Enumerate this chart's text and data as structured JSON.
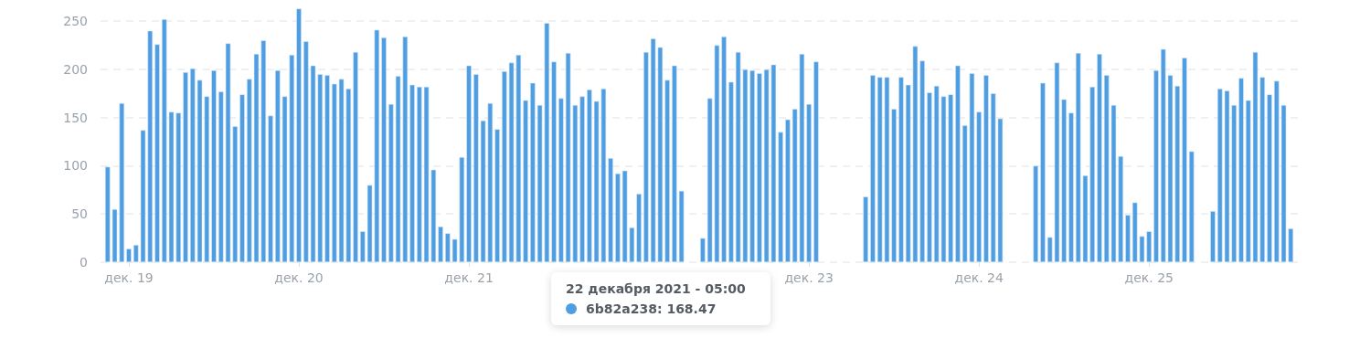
{
  "chart_data": {
    "type": "bar",
    "color": "#4f9ee2",
    "x": [
      "2021-12-18T21:00",
      "2021-12-18T22:00",
      "2021-12-18T23:00",
      "2021-12-19T00:00",
      "2021-12-19T01:00",
      "2021-12-19T02:00",
      "2021-12-19T03:00",
      "2021-12-19T04:00",
      "2021-12-19T05:00",
      "2021-12-19T06:00",
      "2021-12-19T07:00",
      "2021-12-19T08:00",
      "2021-12-19T09:00",
      "2021-12-19T10:00",
      "2021-12-19T11:00",
      "2021-12-19T12:00",
      "2021-12-19T13:00",
      "2021-12-19T14:00",
      "2021-12-19T15:00",
      "2021-12-19T16:00",
      "2021-12-19T17:00",
      "2021-12-19T18:00",
      "2021-12-19T19:00",
      "2021-12-19T20:00",
      "2021-12-19T21:00",
      "2021-12-19T22:00",
      "2021-12-19T23:00",
      "2021-12-20T00:00",
      "2021-12-20T01:00",
      "2021-12-20T02:00",
      "2021-12-20T03:00",
      "2021-12-20T04:00",
      "2021-12-20T05:00",
      "2021-12-20T06:00",
      "2021-12-20T07:00",
      "2021-12-20T08:00",
      "2021-12-20T09:00",
      "2021-12-20T10:00",
      "2021-12-20T11:00",
      "2021-12-20T12:00",
      "2021-12-20T13:00",
      "2021-12-20T14:00",
      "2021-12-20T15:00",
      "2021-12-20T16:00",
      "2021-12-20T17:00",
      "2021-12-20T18:00",
      "2021-12-20T19:00",
      "2021-12-20T20:00",
      "2021-12-20T21:00",
      "2021-12-20T22:00",
      "2021-12-20T23:00",
      "2021-12-21T00:00",
      "2021-12-21T01:00",
      "2021-12-21T02:00",
      "2021-12-21T03:00",
      "2021-12-21T04:00",
      "2021-12-21T05:00",
      "2021-12-21T06:00",
      "2021-12-21T07:00",
      "2021-12-21T08:00",
      "2021-12-21T09:00",
      "2021-12-21T10:00",
      "2021-12-21T11:00",
      "2021-12-21T12:00",
      "2021-12-21T13:00",
      "2021-12-21T14:00",
      "2021-12-21T15:00",
      "2021-12-21T16:00",
      "2021-12-21T17:00",
      "2021-12-21T18:00",
      "2021-12-21T19:00",
      "2021-12-21T20:00",
      "2021-12-21T21:00",
      "2021-12-21T22:00",
      "2021-12-21T23:00",
      "2021-12-22T00:00",
      "2021-12-22T01:00",
      "2021-12-22T02:00",
      "2021-12-22T03:00",
      "2021-12-22T04:00",
      "2021-12-22T05:00",
      "2021-12-22T06:00",
      "2021-12-22T07:00",
      "2021-12-22T08:00",
      "2021-12-22T09:00",
      "2021-12-22T10:00",
      "2021-12-22T11:00",
      "2021-12-22T12:00",
      "2021-12-22T13:00",
      "2021-12-22T14:00",
      "2021-12-22T15:00",
      "2021-12-22T16:00",
      "2021-12-22T17:00",
      "2021-12-22T18:00",
      "2021-12-22T19:00",
      "2021-12-22T20:00",
      "2021-12-22T21:00",
      "2021-12-22T22:00",
      "2021-12-22T23:00",
      "2021-12-23T00:00",
      "2021-12-23T01:00",
      "2021-12-23T02:00",
      "2021-12-23T03:00",
      "2021-12-23T04:00",
      "2021-12-23T05:00",
      "2021-12-23T06:00",
      "2021-12-23T07:00",
      "2021-12-23T08:00",
      "2021-12-23T09:00",
      "2021-12-23T10:00",
      "2021-12-23T11:00",
      "2021-12-23T12:00",
      "2021-12-23T13:00",
      "2021-12-23T14:00",
      "2021-12-23T15:00",
      "2021-12-23T16:00",
      "2021-12-23T17:00",
      "2021-12-23T18:00",
      "2021-12-23T19:00",
      "2021-12-23T20:00",
      "2021-12-23T21:00",
      "2021-12-23T22:00",
      "2021-12-23T23:00",
      "2021-12-24T00:00",
      "2021-12-24T01:00",
      "2021-12-24T02:00",
      "2021-12-24T03:00",
      "2021-12-24T04:00",
      "2021-12-24T05:00",
      "2021-12-24T06:00",
      "2021-12-24T07:00",
      "2021-12-24T08:00",
      "2021-12-24T09:00",
      "2021-12-24T10:00",
      "2021-12-24T11:00",
      "2021-12-24T12:00",
      "2021-12-24T13:00",
      "2021-12-24T14:00",
      "2021-12-24T15:00",
      "2021-12-24T16:00",
      "2021-12-24T17:00",
      "2021-12-24T18:00",
      "2021-12-24T19:00",
      "2021-12-24T20:00",
      "2021-12-24T21:00",
      "2021-12-24T22:00",
      "2021-12-24T23:00",
      "2021-12-25T00:00",
      "2021-12-25T01:00",
      "2021-12-25T02:00",
      "2021-12-25T03:00",
      "2021-12-25T04:00",
      "2021-12-25T05:00",
      "2021-12-25T06:00",
      "2021-12-25T07:00",
      "2021-12-25T08:00",
      "2021-12-25T09:00",
      "2021-12-25T10:00",
      "2021-12-25T11:00",
      "2021-12-25T12:00",
      "2021-12-25T13:00",
      "2021-12-25T14:00",
      "2021-12-25T15:00",
      "2021-12-25T16:00",
      "2021-12-25T17:00",
      "2021-12-25T18:00",
      "2021-12-25T19:00",
      "2021-12-25T20:00"
    ],
    "values": [
      99,
      55,
      165,
      14,
      18,
      137,
      240,
      226,
      252,
      156,
      155,
      197,
      201,
      189,
      172,
      199,
      177,
      227,
      141,
      174,
      190,
      216,
      230,
      152,
      199,
      172,
      215,
      263,
      229,
      204,
      195,
      194,
      185,
      190,
      180,
      218,
      32,
      80,
      241,
      233,
      164,
      193,
      234,
      184,
      182,
      182,
      96,
      37,
      30,
      24,
      109,
      204,
      195,
      147,
      165,
      138,
      198,
      207,
      215,
      168,
      186,
      163,
      248,
      208,
      170,
      217,
      163,
      172,
      179,
      167,
      180,
      108,
      92,
      95,
      36,
      71,
      218,
      232,
      223,
      189,
      204,
      74,
      null,
      null,
      25,
      170,
      225,
      234,
      187,
      218,
      200,
      199,
      196,
      200,
      205,
      135,
      148,
      159,
      216,
      164,
      208,
      null,
      null,
      null,
      null,
      null,
      null,
      68,
      194,
      192,
      192,
      159,
      192,
      184,
      224,
      209,
      176,
      183,
      172,
      174,
      204,
      142,
      196,
      156,
      194,
      175,
      149,
      null,
      null,
      null,
      null,
      100,
      186,
      26,
      207,
      169,
      155,
      217,
      90,
      182,
      216,
      194,
      163,
      110,
      49,
      62,
      27,
      32,
      199,
      221,
      194,
      183,
      212,
      115,
      null,
      null,
      53,
      180,
      178,
      163,
      191,
      168,
      218,
      192,
      174,
      188,
      163,
      35
    ],
    "xlim": [
      "2021-12-18T20:00",
      "2021-12-25T21:00"
    ],
    "xticks": [
      {
        "value": "2021-12-19",
        "label": "дек. 19"
      },
      {
        "value": "2021-12-20",
        "label": "дек. 20"
      },
      {
        "value": "2021-12-21",
        "label": "дек. 21"
      },
      {
        "value": "2021-12-23",
        "label": "дек. 23"
      },
      {
        "value": "2021-12-24",
        "label": "дек. 24"
      },
      {
        "value": "2021-12-25",
        "label": "дек. 25"
      }
    ],
    "ylim": [
      0,
      270
    ],
    "yticks": [
      0,
      50,
      100,
      150,
      200,
      250
    ],
    "grid": "y",
    "annotations": [
      "22 декабря 2021 - 05:00",
      "6b82a238: 168.47"
    ]
  }
}
